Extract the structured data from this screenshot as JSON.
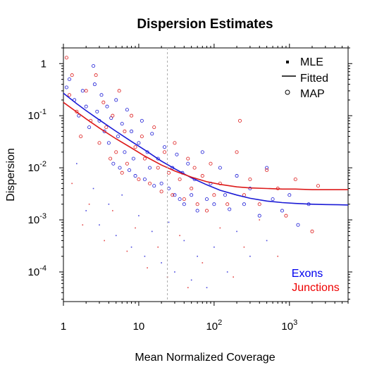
{
  "chart_data": {
    "type": "scatter",
    "title": "Dispersion Estimates",
    "xlabel": "Mean Normalized Coverage",
    "ylabel": "Dispersion",
    "x_scale": "log",
    "y_scale": "log",
    "xlim": [
      1,
      6000
    ],
    "ylim": [
      2.7e-05,
      2.0
    ],
    "x_ticks": [
      {
        "value": 1,
        "base": "1",
        "exp": ""
      },
      {
        "value": 10,
        "base": "10",
        "exp": ""
      },
      {
        "value": 100,
        "base": "10",
        "exp": "2"
      },
      {
        "value": 1000,
        "base": "10",
        "exp": "3"
      }
    ],
    "y_ticks": [
      {
        "value": 0.0001,
        "base": "10",
        "exp": "-4"
      },
      {
        "value": 0.001,
        "base": "10",
        "exp": "-3"
      },
      {
        "value": 0.01,
        "base": "10",
        "exp": "-2"
      },
      {
        "value": 0.1,
        "base": "10",
        "exp": "-1"
      },
      {
        "value": 1,
        "base": "1",
        "exp": ""
      }
    ],
    "legend": {
      "placement": "top-right",
      "entries": [
        {
          "label": "MLE",
          "symbol": "dot"
        },
        {
          "label": "Fitted",
          "symbol": "line"
        },
        {
          "label": "MAP",
          "symbol": "circle"
        }
      ]
    },
    "groups_legend": {
      "placement": "bottom-right",
      "entries": [
        {
          "label": "Exons",
          "color": "#0000ee"
        },
        {
          "label": "Junctions",
          "color": "#ee0000"
        }
      ]
    },
    "vline": {
      "x": 24,
      "style": "dashed",
      "color": "#aaaaaa"
    },
    "series": [
      {
        "name": "Exons",
        "color": "#1a1ad6",
        "fitted": {
          "x": [
            1,
            1.5,
            2,
            3,
            5,
            8,
            12,
            20,
            30,
            50,
            80,
            120,
            200,
            300,
            500,
            800,
            1200,
            2000,
            3000,
            4500,
            6000
          ],
          "y": [
            0.27,
            0.17,
            0.125,
            0.083,
            0.05,
            0.032,
            0.022,
            0.0134,
            0.0096,
            0.0064,
            0.0047,
            0.0037,
            0.003,
            0.0026,
            0.0023,
            0.00215,
            0.00207,
            0.002,
            0.00197,
            0.00195,
            0.00193
          ]
        },
        "map_points": [
          [
            1.1,
            0.35
          ],
          [
            1.2,
            0.5
          ],
          [
            1.4,
            0.2
          ],
          [
            1.6,
            0.1
          ],
          [
            1.8,
            0.3
          ],
          [
            2.0,
            0.15
          ],
          [
            2.2,
            0.06
          ],
          [
            2.5,
            0.9
          ],
          [
            2.6,
            0.4
          ],
          [
            2.8,
            0.12
          ],
          [
            3.0,
            0.08
          ],
          [
            3.2,
            0.25
          ],
          [
            3.5,
            0.05
          ],
          [
            3.8,
            0.15
          ],
          [
            4.0,
            0.03
          ],
          [
            4.3,
            0.09
          ],
          [
            4.6,
            0.012
          ],
          [
            5.0,
            0.2
          ],
          [
            5.3,
            0.04
          ],
          [
            5.6,
            0.01
          ],
          [
            6.0,
            0.07
          ],
          [
            6.5,
            0.02
          ],
          [
            7.0,
            0.13
          ],
          [
            7.5,
            0.009
          ],
          [
            8.0,
            0.05
          ],
          [
            8.5,
            0.015
          ],
          [
            9.0,
            0.007
          ],
          [
            10,
            0.03
          ],
          [
            11,
            0.08
          ],
          [
            12,
            0.006
          ],
          [
            13,
            0.02
          ],
          [
            14,
            0.01
          ],
          [
            15,
            0.045
          ],
          [
            16,
            0.0045
          ],
          [
            18,
            0.015
          ],
          [
            20,
            0.005
          ],
          [
            22,
            0.025
          ],
          [
            25,
            0.004
          ],
          [
            28,
            0.01
          ],
          [
            30,
            0.003
          ],
          [
            32,
            0.018
          ],
          [
            35,
            0.0025
          ],
          [
            38,
            0.008
          ],
          [
            40,
            0.002
          ],
          [
            45,
            0.012
          ],
          [
            50,
            0.003
          ],
          [
            55,
            0.006
          ],
          [
            60,
            0.0015
          ],
          [
            70,
            0.02
          ],
          [
            80,
            0.0025
          ],
          [
            90,
            0.005
          ],
          [
            100,
            0.002
          ],
          [
            120,
            0.01
          ],
          [
            140,
            0.003
          ],
          [
            160,
            0.0016
          ],
          [
            200,
            0.007
          ],
          [
            250,
            0.002
          ],
          [
            300,
            0.004
          ],
          [
            400,
            0.0012
          ],
          [
            500,
            0.01
          ],
          [
            600,
            0.0025
          ],
          [
            800,
            0.0015
          ],
          [
            1000,
            0.003
          ],
          [
            1300,
            0.0008
          ],
          [
            1800,
            0.002
          ]
        ],
        "mle_points": [
          [
            1.5,
            0.012
          ],
          [
            2.0,
            0.0015
          ],
          [
            2.5,
            0.004
          ],
          [
            3.0,
            0.0008
          ],
          [
            4.0,
            0.002
          ],
          [
            5.0,
            0.0005
          ],
          [
            6.0,
            0.003
          ],
          [
            8.0,
            0.0003
          ],
          [
            10,
            0.0012
          ],
          [
            12,
            0.0002
          ],
          [
            15,
            0.0006
          ],
          [
            20,
            0.00015
          ],
          [
            25,
            0.0009
          ],
          [
            30,
            0.0001
          ],
          [
            40,
            0.0004
          ],
          [
            50,
            7e-05
          ],
          [
            60,
            0.0002
          ],
          [
            80,
            5e-05
          ],
          [
            100,
            0.0003
          ],
          [
            150,
            0.0001
          ],
          [
            200,
            0.0006
          ],
          [
            300,
            0.0002
          ],
          [
            500,
            0.0004
          ]
        ]
      },
      {
        "name": "Junctions",
        "color": "#dd1a1a",
        "fitted": {
          "x": [
            1,
            1.5,
            2,
            3,
            5,
            8,
            12,
            20,
            30,
            50,
            80,
            120,
            200,
            300,
            500,
            800,
            1200,
            2000,
            3000,
            4500,
            6000
          ],
          "y": [
            0.18,
            0.118,
            0.087,
            0.058,
            0.036,
            0.024,
            0.0168,
            0.0113,
            0.0087,
            0.0066,
            0.0054,
            0.0048,
            0.0043,
            0.0041,
            0.004,
            0.0039,
            0.0039,
            0.0038,
            0.0038,
            0.0038,
            0.0038
          ]
        },
        "map_points": [
          [
            1.1,
            1.3
          ],
          [
            1.2,
            0.25
          ],
          [
            1.3,
            0.6
          ],
          [
            1.5,
            0.12
          ],
          [
            1.7,
            0.04
          ],
          [
            2.0,
            0.3
          ],
          [
            2.3,
            0.08
          ],
          [
            2.7,
            0.6
          ],
          [
            3.0,
            0.03
          ],
          [
            3.4,
            0.18
          ],
          [
            3.7,
            0.06
          ],
          [
            4.2,
            0.015
          ],
          [
            4.5,
            0.1
          ],
          [
            5.0,
            0.02
          ],
          [
            5.5,
            0.3
          ],
          [
            6.0,
            0.008
          ],
          [
            6.5,
            0.05
          ],
          [
            7.0,
            0.012
          ],
          [
            8.0,
            0.1
          ],
          [
            9.0,
            0.025
          ],
          [
            10,
            0.006
          ],
          [
            11,
            0.04
          ],
          [
            12,
            0.015
          ],
          [
            14,
            0.005
          ],
          [
            16,
            0.06
          ],
          [
            18,
            0.01
          ],
          [
            20,
            0.0035
          ],
          [
            22,
            0.02
          ],
          [
            25,
            0.008
          ],
          [
            28,
            0.003
          ],
          [
            30,
            0.03
          ],
          [
            35,
            0.006
          ],
          [
            40,
            0.0025
          ],
          [
            45,
            0.015
          ],
          [
            50,
            0.004
          ],
          [
            55,
            0.01
          ],
          [
            60,
            0.002
          ],
          [
            70,
            0.007
          ],
          [
            80,
            0.0015
          ],
          [
            90,
            0.012
          ],
          [
            100,
            0.003
          ],
          [
            120,
            0.005
          ],
          [
            150,
            0.002
          ],
          [
            200,
            0.02
          ],
          [
            220,
            0.08
          ],
          [
            250,
            0.003
          ],
          [
            300,
            0.006
          ],
          [
            400,
            0.002
          ],
          [
            500,
            0.009
          ],
          [
            700,
            0.004
          ],
          [
            900,
            0.0012
          ],
          [
            1200,
            0.006
          ],
          [
            2000,
            0.0006
          ],
          [
            2400,
            0.0045
          ]
        ],
        "mle_points": [
          [
            1.3,
            0.005
          ],
          [
            1.8,
            0.0008
          ],
          [
            2.2,
            0.002
          ],
          [
            3.5,
            0.0004
          ],
          [
            4.5,
            0.0015
          ],
          [
            7.0,
            0.00025
          ],
          [
            9.0,
            0.0007
          ],
          [
            13,
            0.00012
          ],
          [
            18,
            0.0003
          ],
          [
            24,
            8e-05
          ],
          [
            35,
            0.0005
          ],
          [
            45,
            5e-05
          ],
          [
            70,
            0.00015
          ],
          [
            120,
            0.0007
          ],
          [
            180,
            8e-05
          ],
          [
            250,
            0.0003
          ],
          [
            400,
            0.001
          ],
          [
            700,
            0.0002
          ]
        ]
      }
    ]
  }
}
